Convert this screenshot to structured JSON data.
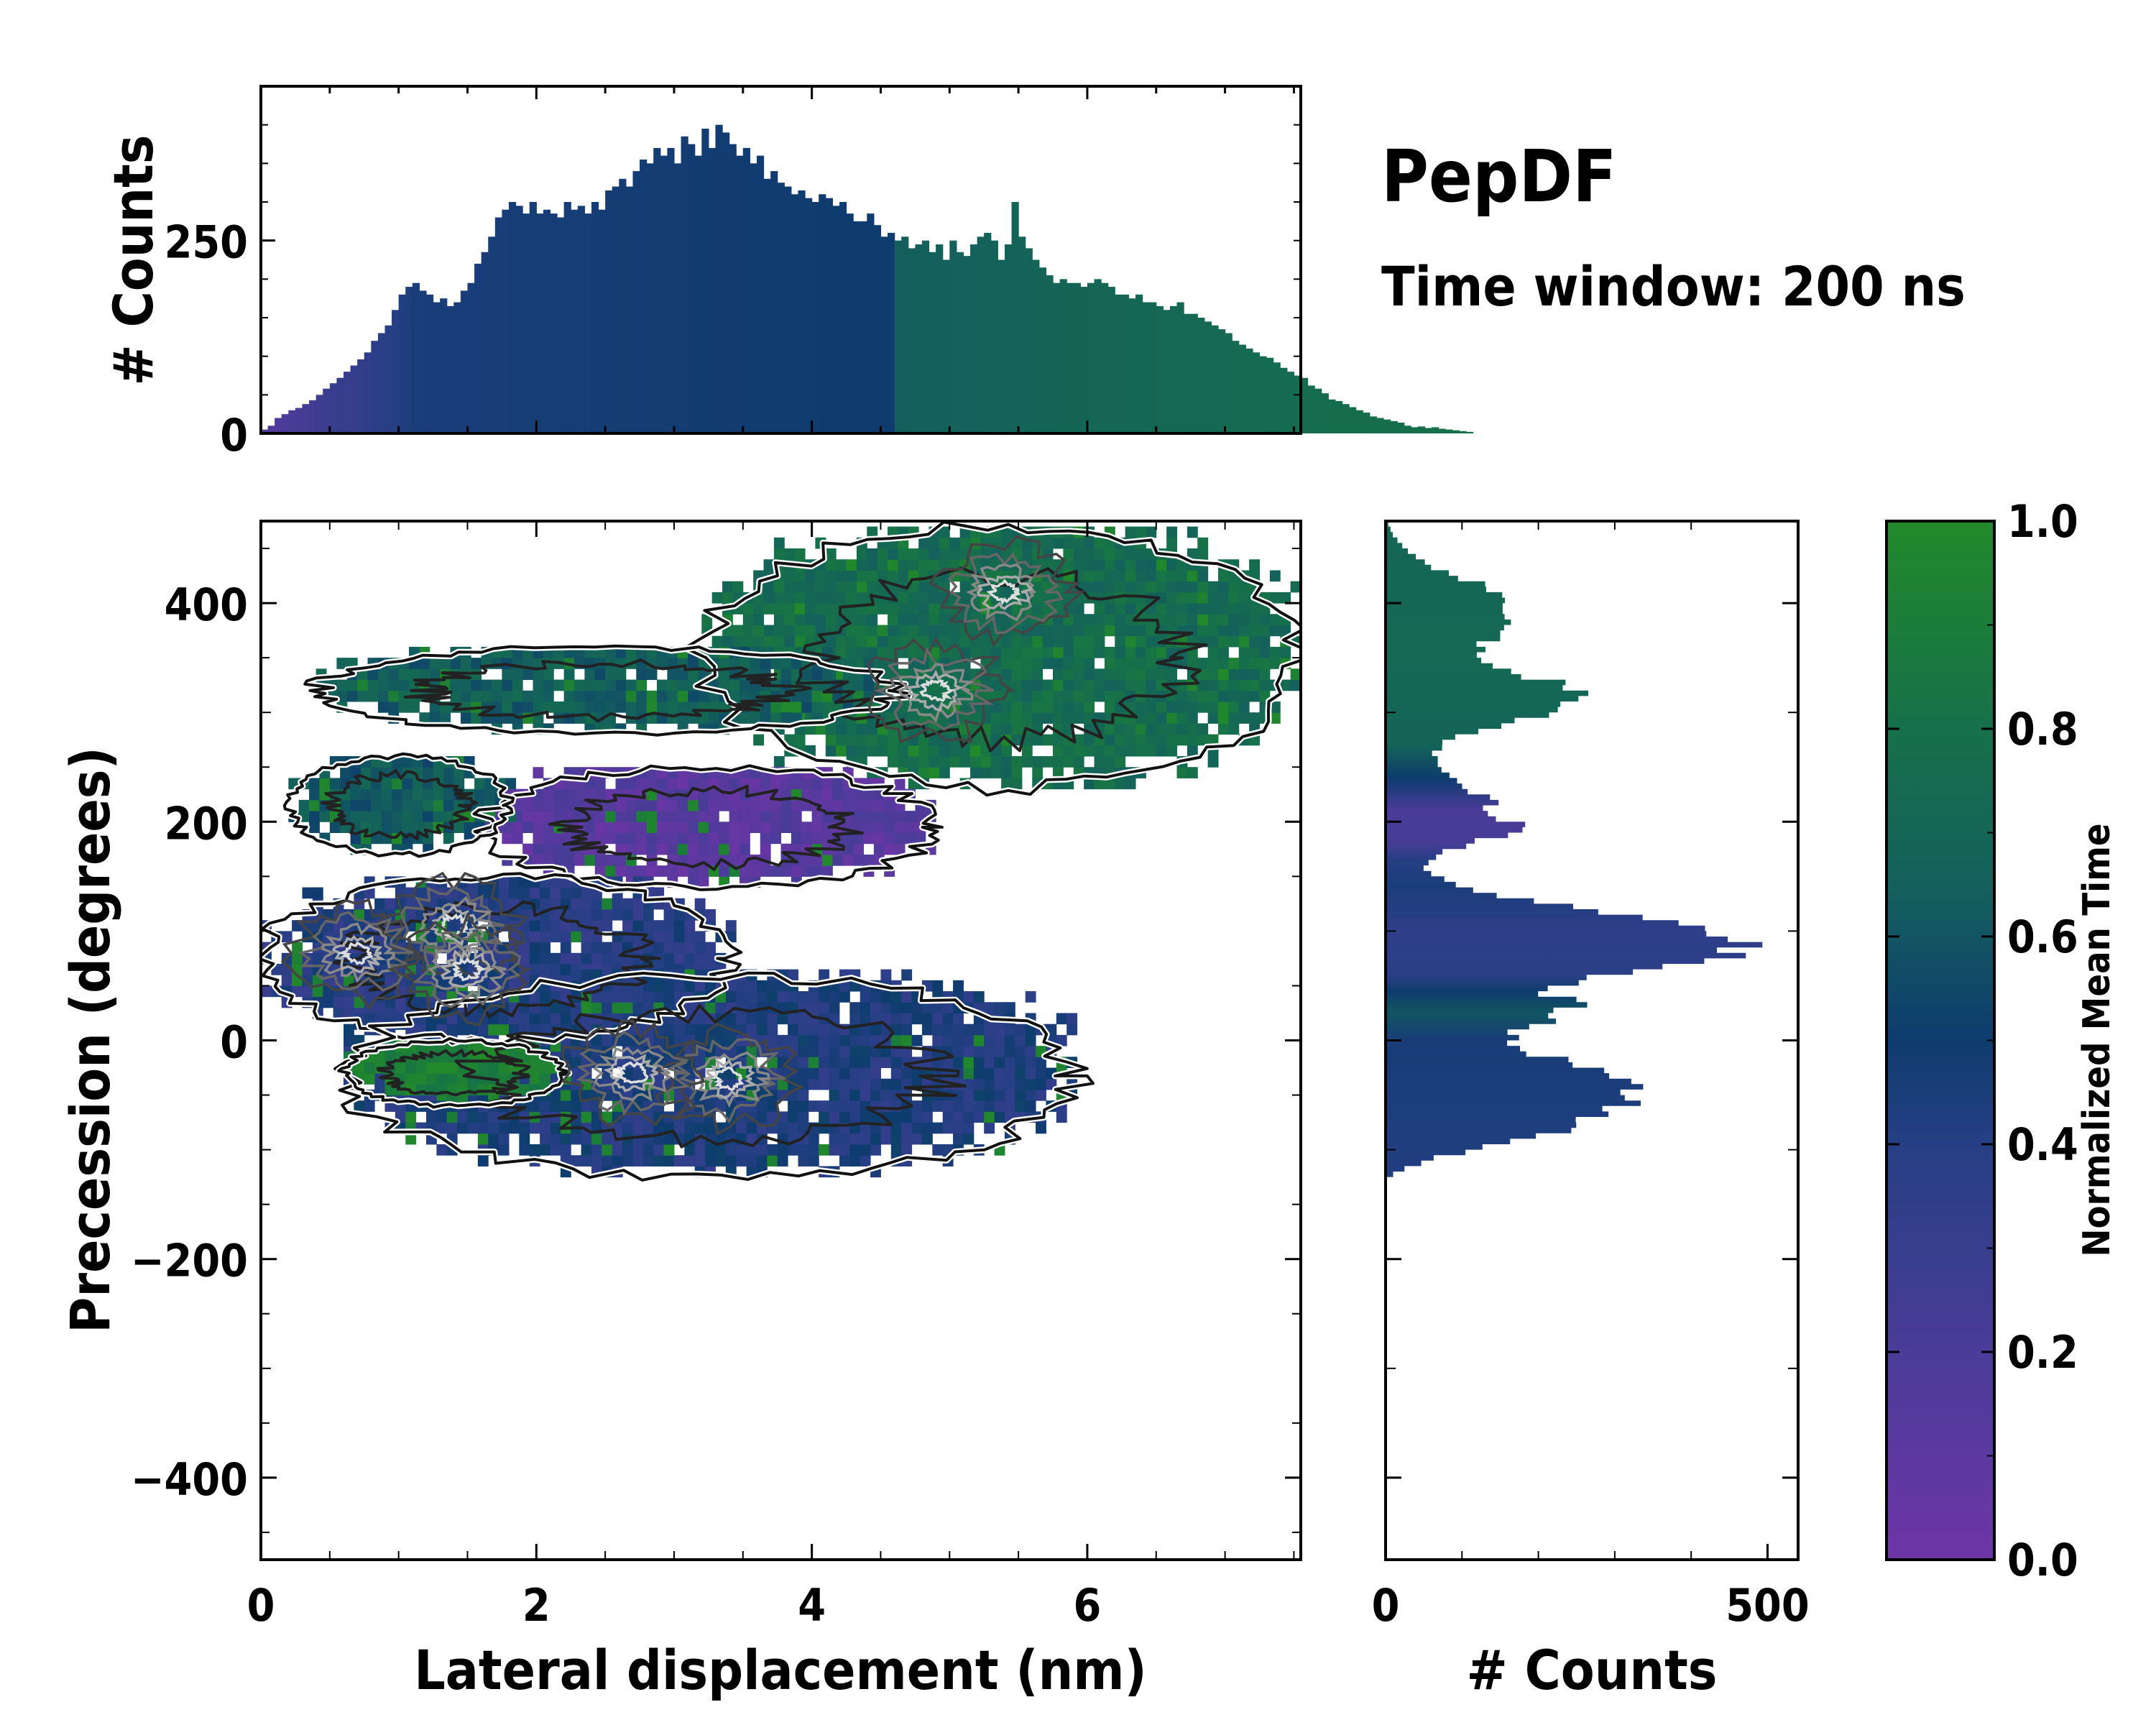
{
  "chart_data": {
    "type": "heatmap",
    "title": "PepDF",
    "subtitle": "Time window: 200 ns",
    "main": {
      "xlabel": "Lateral displacement (nm)",
      "ylabel": "Precession (degrees)",
      "xlim": [
        0,
        7.55
      ],
      "ylim": [
        -475,
        475
      ],
      "xticks": [
        0,
        2,
        4,
        6
      ],
      "xtick_labels": [
        "0",
        "2",
        "4",
        "6"
      ],
      "yticks": [
        -400,
        -200,
        0,
        200,
        400
      ],
      "ytick_labels": [
        "−400",
        "−200",
        "0",
        "200",
        "400"
      ],
      "regions": [
        {
          "name": "upper-right-cluster",
          "x": [
            3.2,
            7.5
          ],
          "y": [
            230,
            470
          ],
          "color_value": 0.75
        },
        {
          "name": "upper-left-band",
          "x": [
            0.4,
            4.6
          ],
          "y": [
            280,
            360
          ],
          "color_value": 0.65
        },
        {
          "name": "middle-purple-band",
          "x": [
            1.6,
            4.9
          ],
          "y": [
            140,
            250
          ],
          "color_value": 0.12
        },
        {
          "name": "mid-left-band",
          "x": [
            0.2,
            1.8
          ],
          "y": [
            170,
            260
          ],
          "color_value": 0.62
        },
        {
          "name": "main-left-cluster",
          "x": [
            0,
            3.4
          ],
          "y": [
            0,
            150
          ],
          "color_value": 0.4
        },
        {
          "name": "lower-cluster",
          "x": [
            0.6,
            5.9
          ],
          "y": [
            -125,
            60
          ],
          "color_value": 0.43
        },
        {
          "name": "lower-green-patch",
          "x": [
            0.6,
            2.2
          ],
          "y": [
            -60,
            0
          ],
          "color_value": 0.92
        }
      ],
      "density_peaks": [
        {
          "x": 1.4,
          "y": 105
        },
        {
          "x": 0.7,
          "y": 80
        },
        {
          "x": 1.5,
          "y": 65
        },
        {
          "x": 3.4,
          "y": -35
        },
        {
          "x": 2.7,
          "y": -30
        },
        {
          "x": 4.9,
          "y": 320
        },
        {
          "x": 5.4,
          "y": 410
        }
      ]
    },
    "top_histogram": {
      "ylabel": "# Counts",
      "ylim": [
        0,
        450
      ],
      "yticks": [
        0,
        250
      ],
      "ytick_labels": [
        "0",
        "250"
      ],
      "bin_width": 0.05,
      "counts": [
        5,
        10,
        20,
        25,
        30,
        33,
        38,
        43,
        50,
        58,
        65,
        72,
        80,
        88,
        96,
        105,
        120,
        130,
        140,
        160,
        180,
        190,
        195,
        185,
        180,
        170,
        175,
        165,
        170,
        185,
        195,
        220,
        235,
        255,
        280,
        290,
        300,
        295,
        285,
        300,
        285,
        290,
        285,
        280,
        300,
        290,
        295,
        285,
        300,
        290,
        315,
        320,
        330,
        320,
        340,
        355,
        350,
        370,
        360,
        370,
        350,
        385,
        375,
        360,
        395,
        370,
        400,
        390,
        375,
        360,
        370,
        350,
        360,
        330,
        340,
        325,
        320,
        310,
        315,
        305,
        300,
        310,
        305,
        295,
        300,
        285,
        275,
        275,
        285,
        270,
        255,
        260,
        250,
        255,
        240,
        245,
        250,
        235,
        245,
        225,
        250,
        235,
        230,
        245,
        255,
        260,
        250,
        225,
        245,
        300,
        255,
        240,
        225,
        215,
        205,
        195,
        200,
        195,
        195,
        190,
        195,
        200,
        195,
        190,
        180,
        180,
        175,
        180,
        170,
        170,
        165,
        160,
        165,
        170,
        155,
        155,
        150,
        145,
        140,
        135,
        130,
        120,
        115,
        110,
        105,
        100,
        98,
        92,
        85,
        80,
        75,
        72,
        62,
        58,
        52,
        44,
        42,
        38,
        34,
        30,
        27,
        22,
        20,
        18,
        16,
        14,
        10,
        8,
        9,
        7,
        8,
        6,
        5,
        4,
        3,
        2
      ]
    },
    "right_histogram": {
      "xlabel": "# Counts",
      "xlim": [
        0,
        540
      ],
      "xticks": [
        0,
        500
      ],
      "xtick_labels": [
        "0",
        "500"
      ],
      "bin_height": 5,
      "profile": [
        {
          "y": -125,
          "count": 10
        },
        {
          "y": -110,
          "count": 60
        },
        {
          "y": -95,
          "count": 170
        },
        {
          "y": -80,
          "count": 260
        },
        {
          "y": -65,
          "count": 300
        },
        {
          "y": -52,
          "count": 340
        },
        {
          "y": -40,
          "count": 310
        },
        {
          "y": -28,
          "count": 260
        },
        {
          "y": -15,
          "count": 200
        },
        {
          "y": -5,
          "count": 160
        },
        {
          "y": 5,
          "count": 175
        },
        {
          "y": 18,
          "count": 220
        },
        {
          "y": 30,
          "count": 245
        },
        {
          "y": 42,
          "count": 210
        },
        {
          "y": 55,
          "count": 260
        },
        {
          "y": 65,
          "count": 380
        },
        {
          "y": 75,
          "count": 460
        },
        {
          "y": 85,
          "count": 490
        },
        {
          "y": 95,
          "count": 420
        },
        {
          "y": 105,
          "count": 360
        },
        {
          "y": 115,
          "count": 260
        },
        {
          "y": 128,
          "count": 170
        },
        {
          "y": 140,
          "count": 90
        },
        {
          "y": 155,
          "count": 50
        },
        {
          "y": 170,
          "count": 80
        },
        {
          "y": 185,
          "count": 150
        },
        {
          "y": 195,
          "count": 180
        },
        {
          "y": 205,
          "count": 130
        },
        {
          "y": 215,
          "count": 150
        },
        {
          "y": 230,
          "count": 100
        },
        {
          "y": 245,
          "count": 70
        },
        {
          "y": 260,
          "count": 60
        },
        {
          "y": 275,
          "count": 90
        },
        {
          "y": 290,
          "count": 170
        },
        {
          "y": 300,
          "count": 230
        },
        {
          "y": 312,
          "count": 260
        },
        {
          "y": 325,
          "count": 220
        },
        {
          "y": 340,
          "count": 140
        },
        {
          "y": 355,
          "count": 120
        },
        {
          "y": 370,
          "count": 150
        },
        {
          "y": 385,
          "count": 160
        },
        {
          "y": 400,
          "count": 170
        },
        {
          "y": 415,
          "count": 120
        },
        {
          "y": 430,
          "count": 60
        },
        {
          "y": 445,
          "count": 30
        },
        {
          "y": 460,
          "count": 10
        },
        {
          "y": 475,
          "count": 0
        }
      ],
      "color_profile": [
        {
          "y": -125,
          "value": 0.42
        },
        {
          "y": 0,
          "value": 0.46
        },
        {
          "y": 25,
          "value": 0.6
        },
        {
          "y": 45,
          "value": 0.5
        },
        {
          "y": 60,
          "value": 0.38
        },
        {
          "y": 100,
          "value": 0.35
        },
        {
          "y": 140,
          "value": 0.45
        },
        {
          "y": 165,
          "value": 0.4
        },
        {
          "y": 180,
          "value": 0.22
        },
        {
          "y": 210,
          "value": 0.2
        },
        {
          "y": 240,
          "value": 0.5
        },
        {
          "y": 270,
          "value": 0.68
        },
        {
          "y": 350,
          "value": 0.72
        },
        {
          "y": 475,
          "value": 0.7
        }
      ]
    },
    "colorbar": {
      "label": "Normalized Mean Time",
      "range": [
        0,
        1
      ],
      "ticks": [
        0,
        0.2,
        0.4,
        0.6,
        0.8,
        1.0
      ],
      "tick_labels": [
        "0.0",
        "0.2",
        "0.4",
        "0.6",
        "0.8",
        "1.0"
      ],
      "colormap": [
        {
          "value": 0.0,
          "color": "#6d35a6"
        },
        {
          "value": 0.2,
          "color": "#4a3c98"
        },
        {
          "value": 0.4,
          "color": "#263f84"
        },
        {
          "value": 0.5,
          "color": "#0e3c6e"
        },
        {
          "value": 0.65,
          "color": "#14615c"
        },
        {
          "value": 0.8,
          "color": "#16704a"
        },
        {
          "value": 1.0,
          "color": "#22892a"
        }
      ]
    }
  }
}
